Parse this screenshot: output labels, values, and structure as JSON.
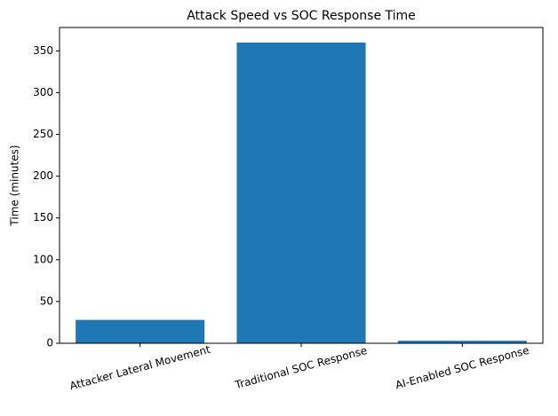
{
  "chart_data": {
    "type": "bar",
    "title": "Attack Speed vs SOC Response Time",
    "y_label": "Time (minutes)",
    "categories": [
      "Attacker Lateral Movement",
      "Traditional SOC Response",
      "AI-Enabled SOC Response"
    ],
    "values": [
      28,
      360,
      3
    ],
    "color": "#1f77b4",
    "ylim": [
      0,
      378
    ],
    "yticks": [
      0,
      50,
      100,
      150,
      200,
      250,
      300,
      350
    ],
    "grid": false
  }
}
